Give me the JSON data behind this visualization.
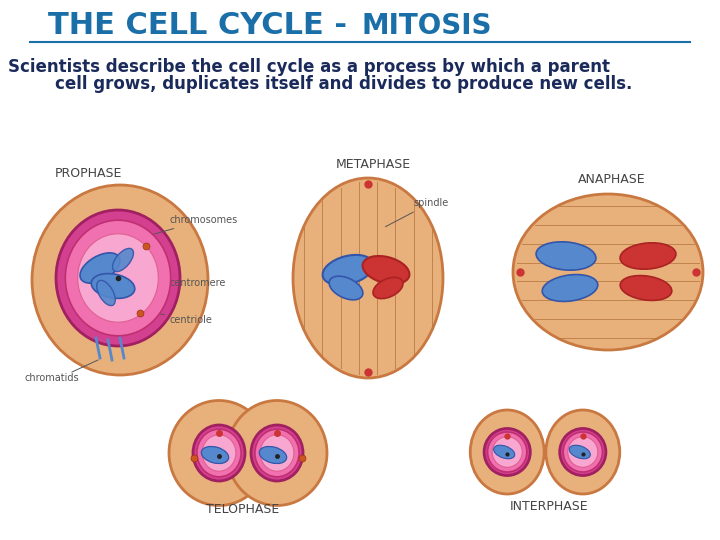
{
  "title": "THE CELL CYCLE - MITOSIS",
  "title_part1": "THE CELL CYCLE",
  "title_part2": "MITOSIS",
  "title_color": "#1a6fa8",
  "title_fontsize": 22,
  "subtitle_line1": "Scientists describe the cell cycle as a process by which a parent",
  "subtitle_line2": "cell grows, duplicates itself and divides to produce new cells.",
  "subtitle_color": "#1a2a5a",
  "subtitle_fontsize": 12,
  "bg_color": "#ffffff",
  "cell_outer_color": "#e8b07a",
  "cell_outer_edge": "#c87840",
  "nucleus_outer_color": "#d44090",
  "nucleus_inner_color": "#f070b0",
  "nucleus_lightest": "#f8a8d0",
  "chr_blue": "#5588cc",
  "chr_red": "#cc3333",
  "label_color": "#555555",
  "phase_label_color": "#444444",
  "label_fontsize": 7,
  "phase_label_fontsize": 9,
  "underline_color": "#1a6fa8",
  "spindle_color": "#b87840"
}
